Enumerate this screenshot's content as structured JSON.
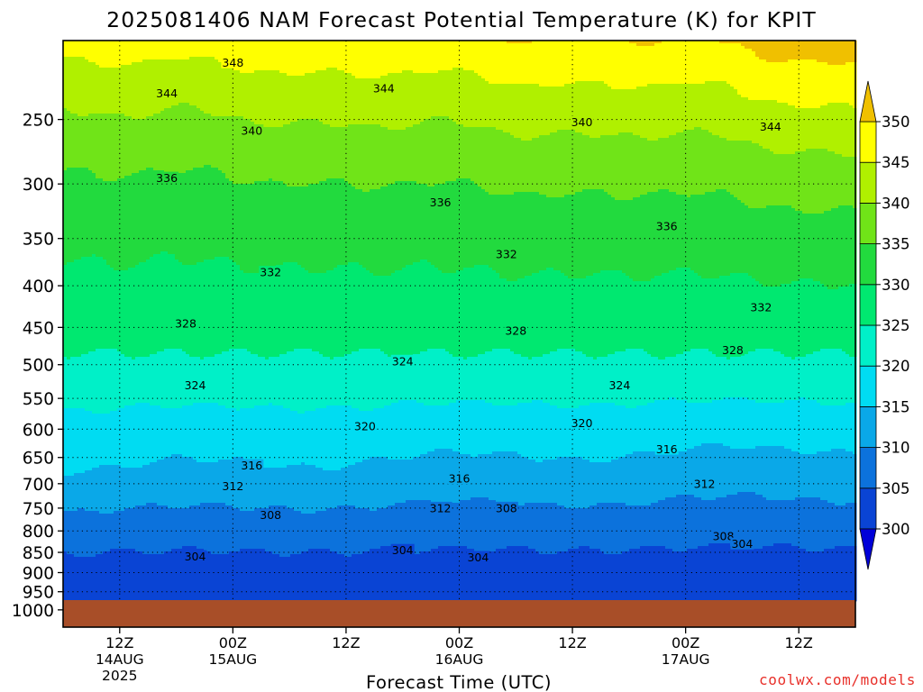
{
  "chart_data": {
    "type": "contour",
    "title": "2025081406 NAM Forecast Potential Temperature (K) for KPIT",
    "xlabel": "Forecast Time (UTC)",
    "ylabel": "",
    "watermark": "coolwx.com/models",
    "y_axis": {
      "ticks": [
        250,
        300,
        350,
        400,
        450,
        500,
        550,
        600,
        650,
        700,
        750,
        800,
        850,
        900,
        950,
        1000
      ],
      "top": 200,
      "bottom": 1050,
      "scale": "log-pressure"
    },
    "x_axis": {
      "ticks": [
        {
          "hour": 6,
          "label": "12Z",
          "sub": "14AUG",
          "sub2": "2025"
        },
        {
          "hour": 18,
          "label": "00Z",
          "sub": "15AUG"
        },
        {
          "hour": 30,
          "label": "12Z"
        },
        {
          "hour": 42,
          "label": "00Z",
          "sub": "16AUG"
        },
        {
          "hour": 54,
          "label": "12Z"
        },
        {
          "hour": 66,
          "label": "00Z",
          "sub": "17AUG"
        },
        {
          "hour": 78,
          "label": "12Z"
        }
      ],
      "range_hours": [
        0,
        84
      ]
    },
    "colorbar": {
      "levels": [
        300,
        305,
        310,
        315,
        320,
        325,
        330,
        335,
        340,
        345,
        350
      ],
      "colors": [
        "#0000d8",
        "#0a44d4",
        "#0c72dc",
        "#0aa8e8",
        "#00dcf2",
        "#00f0c8",
        "#00e870",
        "#22da3e",
        "#70e418",
        "#b0f000",
        "#ffff00",
        "#f0c000"
      ]
    },
    "contour_labels": [
      {
        "v": "348",
        "h": 18.0,
        "p": 213
      },
      {
        "v": "344",
        "h": 11.0,
        "p": 232
      },
      {
        "v": "344",
        "h": 34.0,
        "p": 229
      },
      {
        "v": "344",
        "h": 75.0,
        "p": 255
      },
      {
        "v": "340",
        "h": 20.0,
        "p": 258
      },
      {
        "v": "340",
        "h": 55.0,
        "p": 252
      },
      {
        "v": "336",
        "h": 11.0,
        "p": 295
      },
      {
        "v": "336",
        "h": 40.0,
        "p": 316
      },
      {
        "v": "336",
        "h": 64.0,
        "p": 338
      },
      {
        "v": "332",
        "h": 22.0,
        "p": 385
      },
      {
        "v": "332",
        "h": 47.0,
        "p": 366
      },
      {
        "v": "332",
        "h": 74.0,
        "p": 425
      },
      {
        "v": "328",
        "h": 13.0,
        "p": 445
      },
      {
        "v": "328",
        "h": 48.0,
        "p": 454
      },
      {
        "v": "328",
        "h": 71.0,
        "p": 480
      },
      {
        "v": "324",
        "h": 14.0,
        "p": 530
      },
      {
        "v": "324",
        "h": 36.0,
        "p": 495
      },
      {
        "v": "324",
        "h": 59.0,
        "p": 530
      },
      {
        "v": "320",
        "h": 32.0,
        "p": 595
      },
      {
        "v": "320",
        "h": 55.0,
        "p": 590
      },
      {
        "v": "316",
        "h": 20.0,
        "p": 665
      },
      {
        "v": "316",
        "h": 42.0,
        "p": 690
      },
      {
        "v": "316",
        "h": 64.0,
        "p": 635
      },
      {
        "v": "312",
        "h": 18.0,
        "p": 705
      },
      {
        "v": "312",
        "h": 40.0,
        "p": 750
      },
      {
        "v": "312",
        "h": 68.0,
        "p": 700
      },
      {
        "v": "308",
        "h": 22.0,
        "p": 765
      },
      {
        "v": "308",
        "h": 47.0,
        "p": 750
      },
      {
        "v": "308",
        "h": 70.0,
        "p": 812
      },
      {
        "v": "304",
        "h": 14.0,
        "p": 860
      },
      {
        "v": "304",
        "h": 36.0,
        "p": 845
      },
      {
        "v": "304",
        "h": 44.0,
        "p": 862
      },
      {
        "v": "304",
        "h": 72.0,
        "p": 830
      }
    ],
    "surface_pressure": 975
  }
}
